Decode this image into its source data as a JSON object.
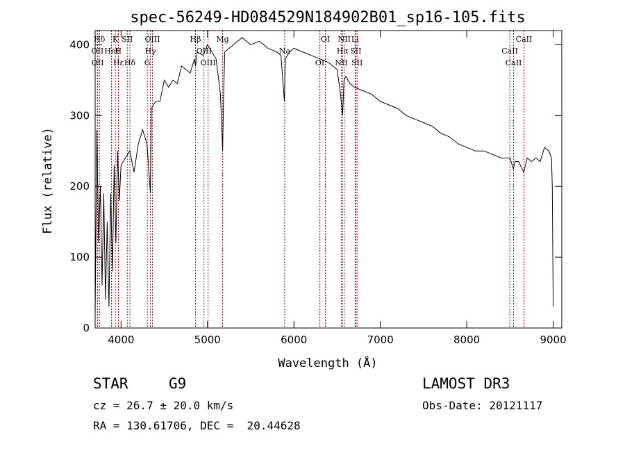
{
  "chart_data": {
    "type": "line",
    "title": "spec-56249-HD084529N184902B01_sp16-105.fits",
    "xlabel": "Wavelength (Å)",
    "ylabel": "Flux (relative)",
    "xlim": [
      3700,
      9100
    ],
    "ylim": [
      0,
      420
    ],
    "xticks": [
      4000,
      5000,
      6000,
      7000,
      8000,
      9000
    ],
    "yticks": [
      0,
      100,
      200,
      300,
      400
    ],
    "line_color": "#000000",
    "marker_color": "#c00000",
    "series": [
      {
        "name": "flux",
        "x": [
          3700,
          3720,
          3740,
          3760,
          3780,
          3800,
          3820,
          3840,
          3860,
          3880,
          3900,
          3920,
          3940,
          3960,
          3980,
          4000,
          4050,
          4100,
          4150,
          4200,
          4250,
          4300,
          4340,
          4350,
          4400,
          4450,
          4500,
          4550,
          4600,
          4650,
          4700,
          4750,
          4800,
          4850,
          4862,
          4880,
          4950,
          5000,
          5050,
          5100,
          5150,
          5175,
          5185,
          5200,
          5250,
          5300,
          5350,
          5400,
          5500,
          5600,
          5700,
          5800,
          5850,
          5890,
          5900,
          5950,
          6000,
          6100,
          6200,
          6300,
          6400,
          6450,
          6500,
          6540,
          6563,
          6580,
          6600,
          6650,
          6700,
          6800,
          6900,
          7000,
          7100,
          7200,
          7300,
          7400,
          7500,
          7600,
          7700,
          7800,
          7900,
          8000,
          8100,
          8200,
          8300,
          8400,
          8500,
          8540,
          8560,
          8600,
          8660,
          8700,
          8750,
          8800,
          8850,
          8900,
          8950,
          8980,
          8990,
          9000
        ],
        "y": [
          20,
          280,
          120,
          200,
          60,
          190,
          40,
          150,
          30,
          190,
          80,
          230,
          120,
          250,
          180,
          230,
          240,
          250,
          220,
          260,
          280,
          260,
          190,
          310,
          320,
          320,
          350,
          340,
          350,
          345,
          370,
          365,
          360,
          380,
          370,
          390,
          385,
          400,
          390,
          380,
          330,
          250,
          320,
          390,
          395,
          400,
          405,
          410,
          400,
          405,
          395,
          390,
          385,
          320,
          380,
          390,
          395,
          390,
          385,
          380,
          375,
          370,
          365,
          330,
          300,
          350,
          355,
          345,
          340,
          335,
          330,
          320,
          315,
          310,
          300,
          295,
          290,
          285,
          275,
          270,
          260,
          255,
          250,
          250,
          245,
          240,
          240,
          225,
          235,
          235,
          220,
          240,
          235,
          240,
          235,
          255,
          250,
          240,
          200,
          30
        ]
      }
    ],
    "lines": [
      {
        "label": "Hδ",
        "wavelength": 3750
      },
      {
        "label": "OII",
        "wavelength": 3727
      },
      {
        "label": "OII",
        "wavelength": 3729
      },
      {
        "label": "K",
        "wavelength": 3934
      },
      {
        "label": "HeI",
        "wavelength": 3889
      },
      {
        "label": "Hε",
        "wavelength": 3970
      },
      {
        "label": "SII",
        "wavelength": 4072
      },
      {
        "label": "H",
        "wavelength": 3968
      },
      {
        "label": "Hδ",
        "wavelength": 4102
      },
      {
        "label": "OIII",
        "wavelength": 4363
      },
      {
        "label": "Hγ",
        "wavelength": 4340
      },
      {
        "label": "G",
        "wavelength": 4304
      },
      {
        "label": "Hβ",
        "wavelength": 4861
      },
      {
        "label": "OIII",
        "wavelength": 4959
      },
      {
        "label": "OIII",
        "wavelength": 5007
      },
      {
        "label": "Mg",
        "wavelength": 5175
      },
      {
        "label": "Na",
        "wavelength": 5893
      },
      {
        "label": "OI",
        "wavelength": 6300
      },
      {
        "label": "OI",
        "wavelength": 6364
      },
      {
        "label": "Hα",
        "wavelength": 6563
      },
      {
        "label": "NII",
        "wavelength": 6548
      },
      {
        "label": "NII",
        "wavelength": 6583
      },
      {
        "label": "SII",
        "wavelength": 6716
      },
      {
        "label": "SII",
        "wavelength": 6731
      },
      {
        "label": "Li",
        "wavelength": 6708
      },
      {
        "label": "CaII",
        "wavelength": 8498
      },
      {
        "label": "CaII",
        "wavelength": 8542
      },
      {
        "label": "CaII",
        "wavelength": 8662
      }
    ]
  },
  "info": {
    "object_type": "STAR",
    "subclass": "G9",
    "cz_line": "cz = 26.7 ± 20.0 km/s",
    "coords_line": "RA = 130.61706, DEC =  20.44628",
    "survey": "LAMOST DR3",
    "obs_date_line": "Obs-Date: 20121117"
  }
}
